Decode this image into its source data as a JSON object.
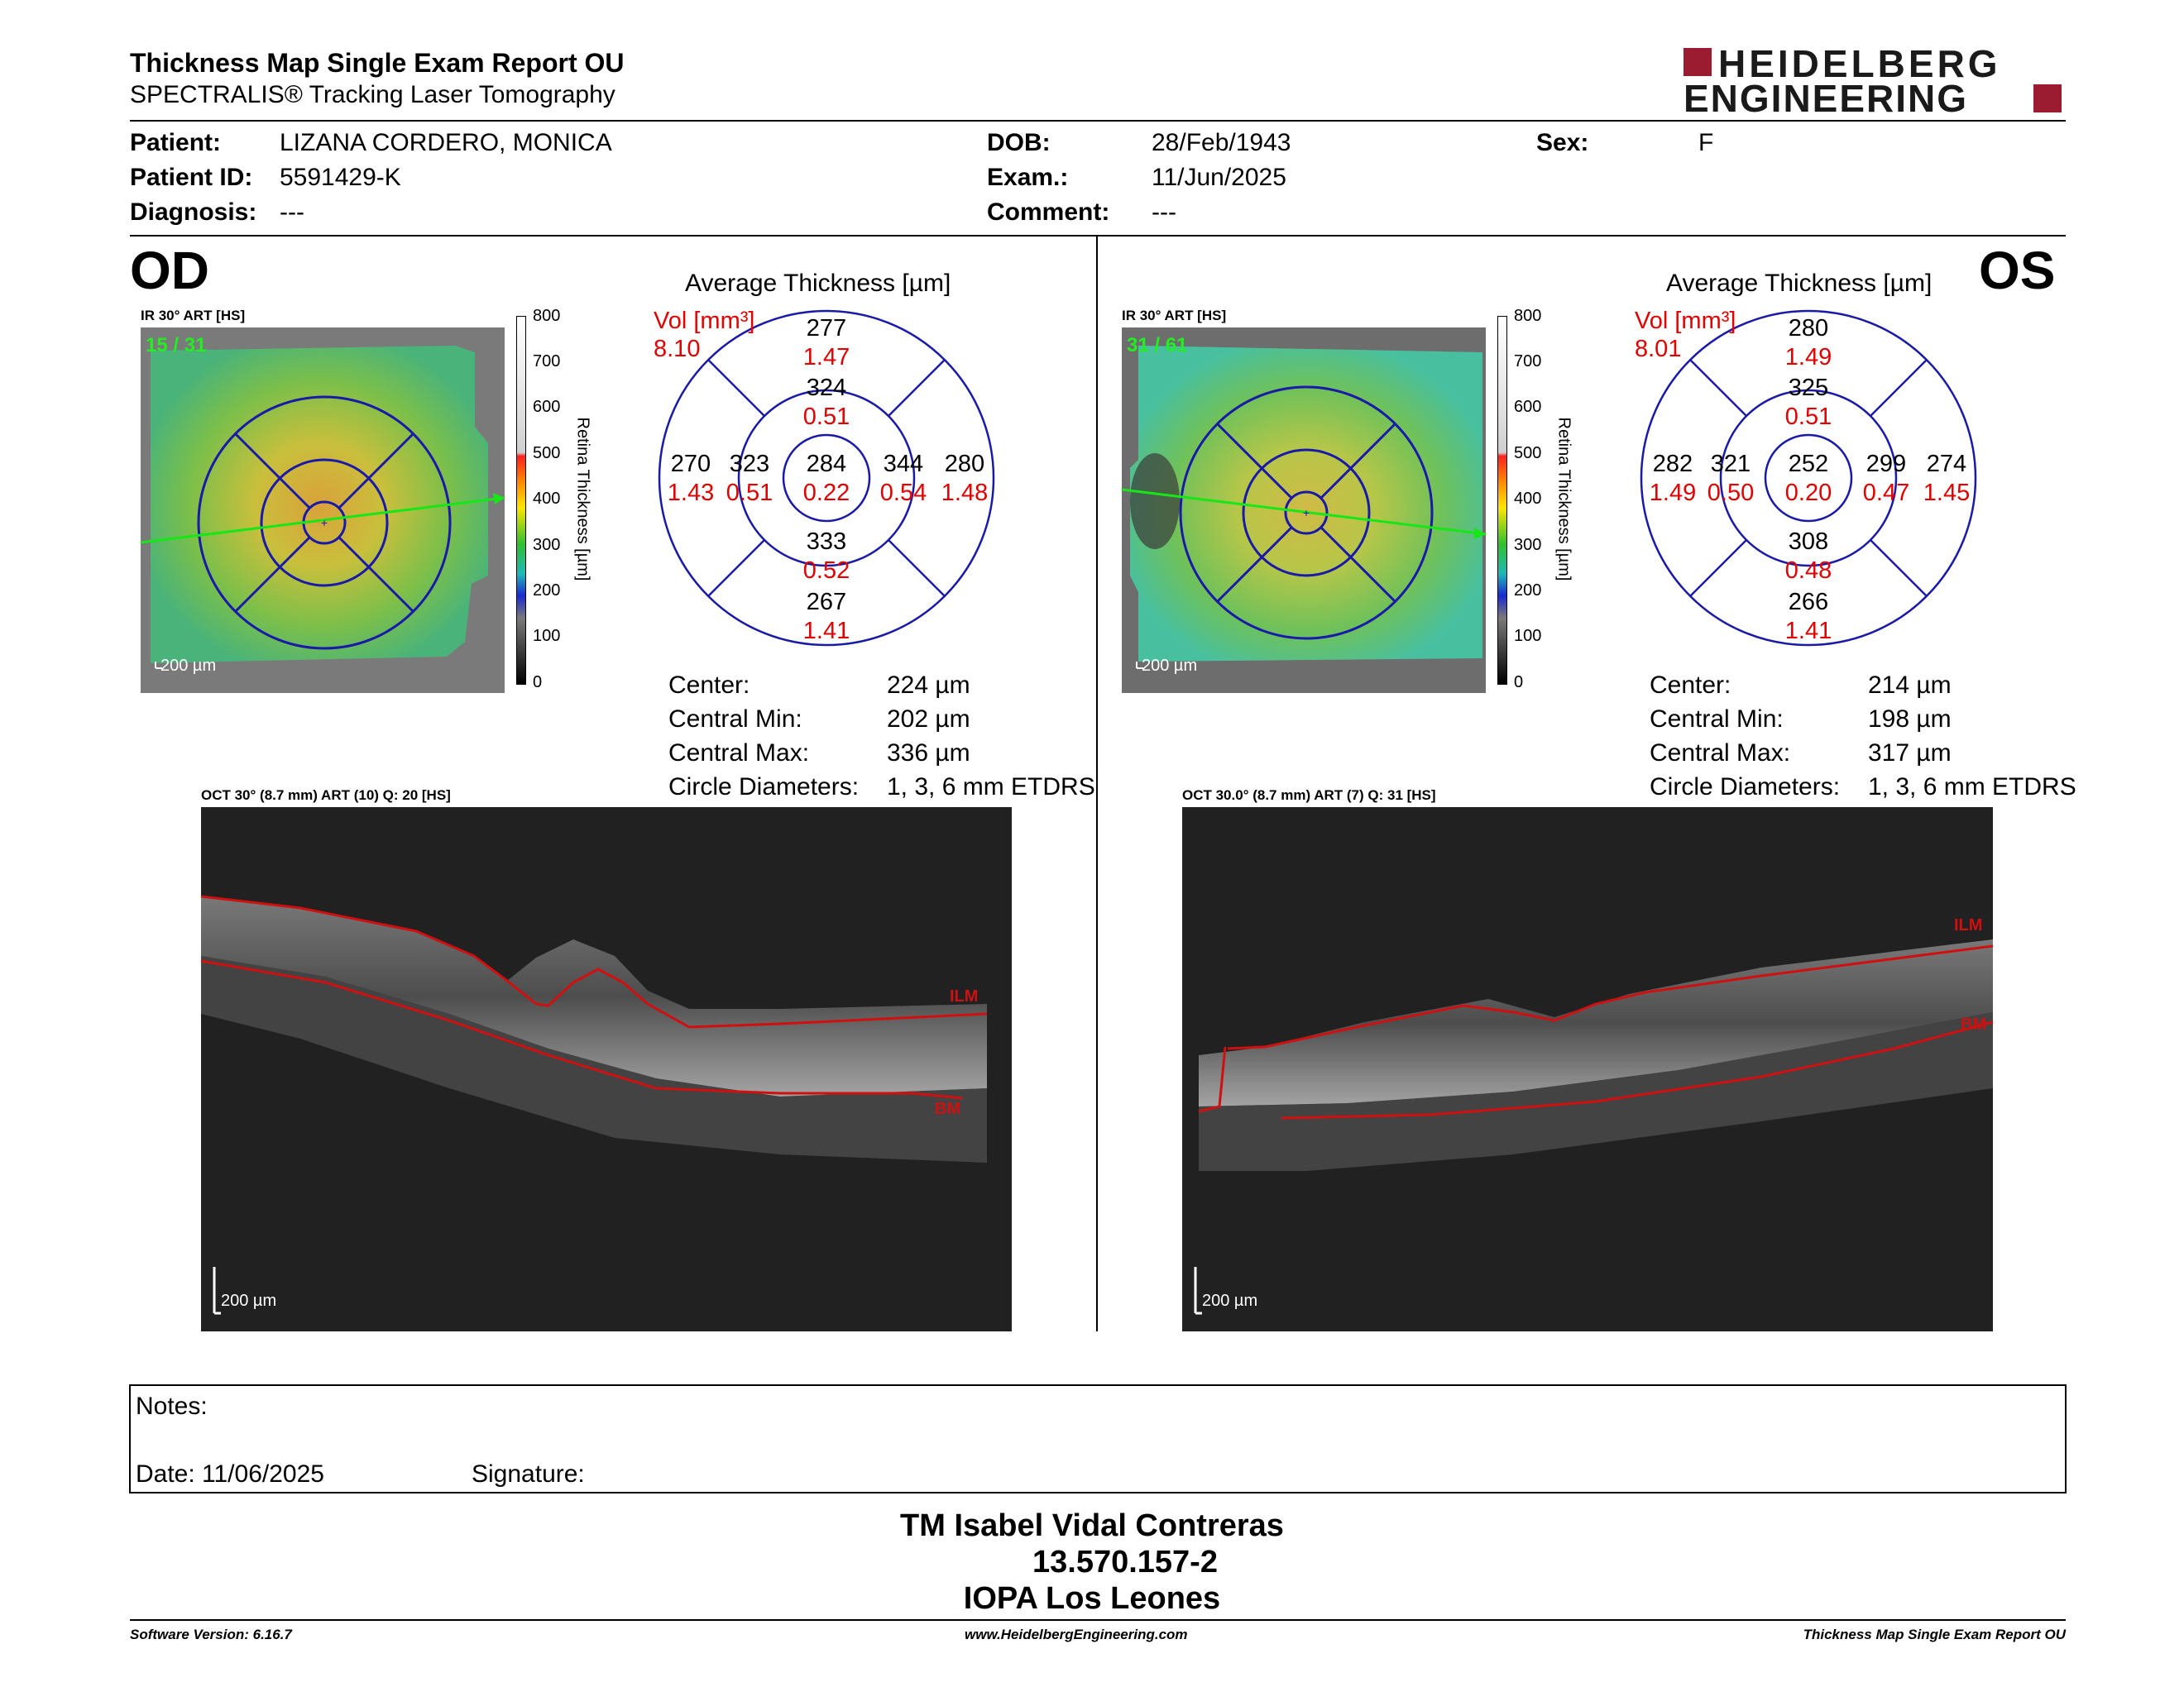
{
  "header": {
    "title": "Thickness Map Single Exam Report OU",
    "subtitle": "SPECTRALIS® Tracking Laser Tomography",
    "logo_line1": "HEIDELBERG",
    "logo_line2": "ENGINEERING"
  },
  "patient": {
    "patient_label": "Patient:",
    "patient_value": "LIZANA CORDERO, MONICA",
    "id_label": "Patient ID:",
    "id_value": "5591429-K",
    "diagnosis_label": "Diagnosis:",
    "diagnosis_value": "---",
    "dob_label": "DOB:",
    "dob_value": "28/Feb/1943",
    "exam_label": "Exam.:",
    "exam_value": "11/Jun/2025",
    "comment_label": "Comment:",
    "comment_value": "---",
    "sex_label": "Sex:",
    "sex_value": "F"
  },
  "colorbar": {
    "ticks": [
      "800",
      "700",
      "600",
      "500",
      "400",
      "300",
      "200",
      "100",
      "0"
    ],
    "label": "Retina Thickness [µm]"
  },
  "od": {
    "eye_label": "OD",
    "ir_label": "IR 30° ART [HS]",
    "ir_counter": "15 / 31",
    "ir_scale": "200 µm",
    "grid_title": "Average Thickness [µm]",
    "vol_label": "Vol [mm³]",
    "vol_value": "8.10",
    "sectors": {
      "sup_outer": [
        "277",
        "1.47"
      ],
      "sup_inner": [
        "324",
        "0.51"
      ],
      "temp_outer": [
        "270",
        "1.43"
      ],
      "temp_inner": [
        "323",
        "0.51"
      ],
      "center": [
        "284",
        "0.22"
      ],
      "nas_inner": [
        "344",
        "0.54"
      ],
      "nas_outer": [
        "280",
        "1.48"
      ],
      "inf_inner": [
        "333",
        "0.52"
      ],
      "inf_outer": [
        "267",
        "1.41"
      ]
    },
    "stats": [
      {
        "label": "Center:",
        "value": "224 µm"
      },
      {
        "label": "Central Min:",
        "value": "202 µm"
      },
      {
        "label": "Central Max:",
        "value": "336 µm"
      },
      {
        "label": "Circle Diameters:",
        "value": "1, 3, 6 mm ETDRS"
      }
    ],
    "oct_label": "OCT 30° (8.7 mm) ART (10) Q: 20 [HS]",
    "oct_scale": "200 µm",
    "ilm": "ILM",
    "bm": "BM"
  },
  "os": {
    "eye_label": "OS",
    "ir_label": "IR 30° ART [HS]",
    "ir_counter": "31 / 61",
    "ir_scale": "200 µm",
    "grid_title": "Average Thickness [µm]",
    "vol_label": "Vol [mm³]",
    "vol_value": "8.01",
    "sectors": {
      "sup_outer": [
        "280",
        "1.49"
      ],
      "sup_inner": [
        "325",
        "0.51"
      ],
      "temp_outer": [
        "282",
        "1.49"
      ],
      "temp_inner": [
        "321",
        "0.50"
      ],
      "center": [
        "252",
        "0.20"
      ],
      "nas_inner": [
        "299",
        "0.47"
      ],
      "nas_outer": [
        "274",
        "1.45"
      ],
      "inf_inner": [
        "308",
        "0.48"
      ],
      "inf_outer": [
        "266",
        "1.41"
      ]
    },
    "stats": [
      {
        "label": "Center:",
        "value": "214 µm"
      },
      {
        "label": "Central Min:",
        "value": "198 µm"
      },
      {
        "label": "Central Max:",
        "value": "317 µm"
      },
      {
        "label": "Circle Diameters:",
        "value": "1, 3, 6 mm ETDRS"
      }
    ],
    "oct_label": "OCT 30.0° (8.7 mm) ART (7) Q: 31 [HS]",
    "oct_scale": "200 µm",
    "ilm": "ILM",
    "bm": "BM"
  },
  "notes": {
    "notes_label": "Notes:",
    "date_label": "Date: 11/06/2025",
    "signature_label": "Signature:"
  },
  "signer": {
    "name": "TM Isabel Vidal Contreras",
    "id": "13.570.157-2",
    "org": "IOPA Los Leones"
  },
  "footer": {
    "software": "Software Version: 6.16.7",
    "website": "www.HeidelbergEngineering.com",
    "report": "Thickness Map Single Exam Report OU"
  },
  "colors": {
    "brand": "#9b1b30",
    "grid_blue": "#1a1aa8",
    "vol_red": "#e00000",
    "ilm_red": "#d01010"
  }
}
